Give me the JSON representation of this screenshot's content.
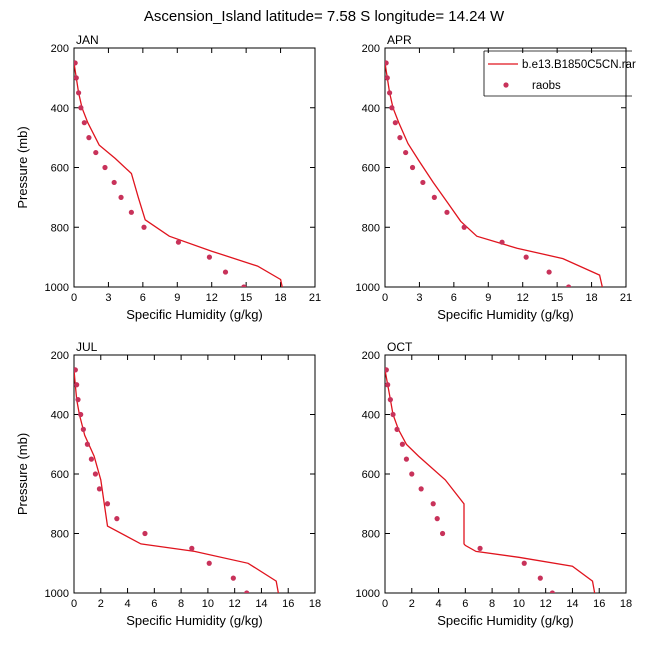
{
  "figure": {
    "title": "Ascension_Island  latitude= 7.58 S longitude= 14.24 W"
  },
  "legend": {
    "model_label": "b.e13.B1850C5CN.rar",
    "obs_label": "raobs",
    "model_color": "#e0141e",
    "obs_color": "#c8325a"
  },
  "chart_data": [
    {
      "type": "line",
      "panel": "JAN",
      "xlabel": "Specific Humidity (g/kg)",
      "ylabel": "Pressure (mb)",
      "xlim": [
        0,
        21
      ],
      "ylim": [
        1000,
        200
      ],
      "xticks": [
        0,
        3,
        6,
        9,
        12,
        15,
        18,
        21
      ],
      "yticks": [
        200,
        400,
        600,
        800,
        1000
      ],
      "series": [
        {
          "name": "b.e13.B1850C5CN.rar",
          "kind": "line",
          "x": [
            0,
            0.2,
            0.4,
            0.7,
            1.2,
            2.2,
            3.6,
            5.0,
            5.6,
            6.2,
            8.3,
            12.0,
            16.0,
            18.0,
            18.2
          ],
          "y": [
            250,
            300,
            350,
            400,
            450,
            525,
            570,
            620,
            700,
            775,
            830,
            880,
            930,
            975,
            1010
          ]
        },
        {
          "name": "raobs",
          "kind": "scatter",
          "x": [
            0.1,
            0.2,
            0.4,
            0.6,
            0.9,
            1.3,
            1.9,
            2.7,
            3.5,
            4.1,
            5.0,
            6.1,
            9.1,
            11.8,
            13.2,
            14.8
          ],
          "y": [
            250,
            300,
            350,
            400,
            450,
            500,
            550,
            600,
            650,
            700,
            750,
            800,
            850,
            900,
            950,
            1000
          ]
        }
      ]
    },
    {
      "type": "line",
      "panel": "APR",
      "xlabel": "Specific Humidity (g/kg)",
      "ylabel": "",
      "xlim": [
        0,
        21
      ],
      "ylim": [
        1000,
        200
      ],
      "xticks": [
        0,
        3,
        6,
        9,
        12,
        15,
        18,
        21
      ],
      "yticks": [
        200,
        400,
        600,
        800,
        1000
      ],
      "series": [
        {
          "name": "b.e13.B1850C5CN.rar",
          "kind": "line",
          "x": [
            0,
            0.2,
            0.4,
            0.7,
            1.2,
            2.0,
            3.0,
            4.2,
            5.5,
            6.6,
            8.0,
            11.5,
            15.5,
            18.7,
            19.0
          ],
          "y": [
            250,
            300,
            350,
            400,
            450,
            520,
            580,
            650,
            720,
            780,
            830,
            870,
            905,
            960,
            1010
          ]
        },
        {
          "name": "raobs",
          "kind": "scatter",
          "x": [
            0.1,
            0.2,
            0.4,
            0.6,
            0.9,
            1.3,
            1.8,
            2.4,
            3.3,
            4.3,
            5.4,
            6.9,
            10.2,
            12.3,
            14.3,
            16.0
          ],
          "y": [
            250,
            300,
            350,
            400,
            450,
            500,
            550,
            600,
            650,
            700,
            750,
            800,
            850,
            900,
            950,
            1000
          ]
        }
      ]
    },
    {
      "type": "line",
      "panel": "JUL",
      "xlabel": "Specific Humidity (g/kg)",
      "ylabel": "Pressure (mb)",
      "xlim": [
        0,
        18
      ],
      "ylim": [
        1000,
        200
      ],
      "xticks": [
        0,
        2,
        4,
        6,
        8,
        10,
        12,
        14,
        16,
        18
      ],
      "yticks": [
        200,
        400,
        600,
        800,
        1000
      ],
      "series": [
        {
          "name": "b.e13.B1850C5CN.rar",
          "kind": "line",
          "x": [
            0,
            0.1,
            0.2,
            0.4,
            0.8,
            1.5,
            2.0,
            2.5,
            5.0,
            9.0,
            13.0,
            15.1,
            15.3
          ],
          "y": [
            250,
            300,
            350,
            400,
            470,
            540,
            620,
            775,
            835,
            860,
            900,
            960,
            1010
          ]
        },
        {
          "name": "raobs",
          "kind": "scatter",
          "x": [
            0.1,
            0.2,
            0.3,
            0.5,
            0.7,
            1.0,
            1.3,
            1.6,
            1.9,
            2.5,
            3.2,
            5.3,
            8.8,
            10.1,
            11.9,
            12.9
          ],
          "y": [
            250,
            300,
            350,
            400,
            450,
            500,
            550,
            600,
            650,
            700,
            750,
            800,
            850,
            900,
            950,
            1000
          ]
        }
      ]
    },
    {
      "type": "line",
      "panel": "OCT",
      "xlabel": "Specific Humidity (g/kg)",
      "ylabel": "",
      "xlim": [
        0,
        18
      ],
      "ylim": [
        1000,
        200
      ],
      "xticks": [
        0,
        2,
        4,
        6,
        8,
        10,
        12,
        14,
        16,
        18
      ],
      "yticks": [
        200,
        400,
        600,
        800,
        1000
      ],
      "series": [
        {
          "name": "b.e13.B1850C5CN.rar",
          "kind": "line",
          "x": [
            0,
            0.2,
            0.4,
            0.6,
            1.0,
            1.6,
            2.5,
            4.5,
            5.9,
            5.9,
            5.9,
            6.0,
            6.8,
            10.0,
            14.0,
            15.5,
            15.7
          ],
          "y": [
            250,
            300,
            350,
            400,
            450,
            500,
            540,
            620,
            700,
            790,
            835,
            840,
            860,
            880,
            910,
            960,
            1010
          ]
        },
        {
          "name": "raobs",
          "kind": "scatter",
          "x": [
            0.1,
            0.2,
            0.4,
            0.6,
            0.9,
            1.3,
            1.6,
            2.0,
            2.7,
            3.6,
            3.9,
            4.3,
            7.1,
            10.4,
            11.6,
            12.5
          ],
          "y": [
            250,
            300,
            350,
            400,
            450,
            500,
            550,
            600,
            650,
            700,
            750,
            800,
            850,
            900,
            950,
            1000
          ]
        }
      ]
    }
  ]
}
